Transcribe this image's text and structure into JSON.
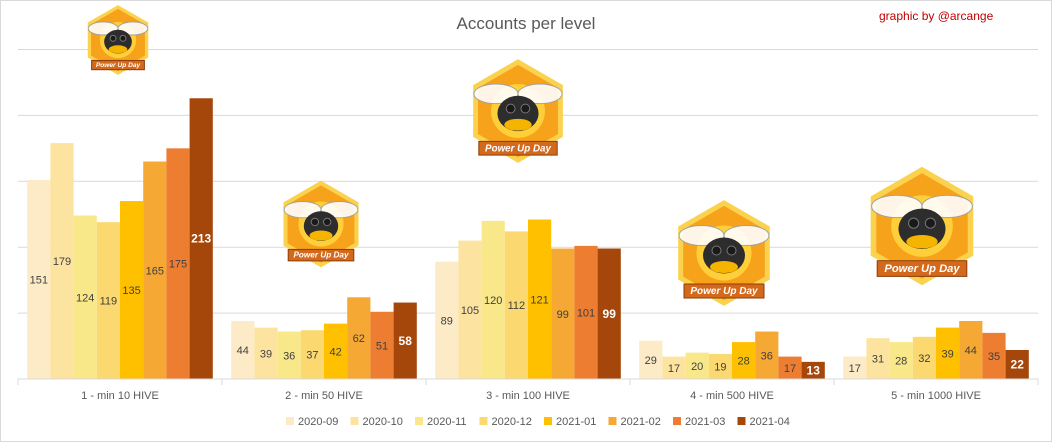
{
  "chart_data": {
    "type": "bar",
    "title": "Accounts per level",
    "credit": "graphic by @arcange",
    "categories": [
      "1 - min 10 HIVE",
      "2 - min 50 HIVE",
      "3 - min 100 HIVE",
      "4 - min 500 HIVE",
      "5 - min 1000 HIVE"
    ],
    "series": [
      {
        "name": "2020-09",
        "values": [
          151,
          44,
          89,
          29,
          17
        ],
        "color": "#fdebc8"
      },
      {
        "name": "2020-10",
        "values": [
          179,
          39,
          105,
          17,
          31
        ],
        "color": "#fde3a0"
      },
      {
        "name": "2020-11",
        "values": [
          124,
          36,
          120,
          20,
          28
        ],
        "color": "#f8e88a"
      },
      {
        "name": "2020-12",
        "values": [
          119,
          37,
          112,
          19,
          32
        ],
        "color": "#fbd870"
      },
      {
        "name": "2021-01",
        "values": [
          135,
          42,
          121,
          28,
          39
        ],
        "color": "#ffc000"
      },
      {
        "name": "2021-02",
        "values": [
          165,
          62,
          99,
          36,
          44
        ],
        "color": "#f5a833"
      },
      {
        "name": "2021-03",
        "values": [
          175,
          51,
          101,
          17,
          35
        ],
        "color": "#ed7d31"
      },
      {
        "name": "2021-04",
        "values": [
          213,
          58,
          99,
          13,
          22
        ],
        "color": "#a5460a"
      }
    ],
    "ylim": [
      0,
      250
    ],
    "grid": true,
    "legend": "bottom",
    "badge_text": "Power Up Day"
  }
}
